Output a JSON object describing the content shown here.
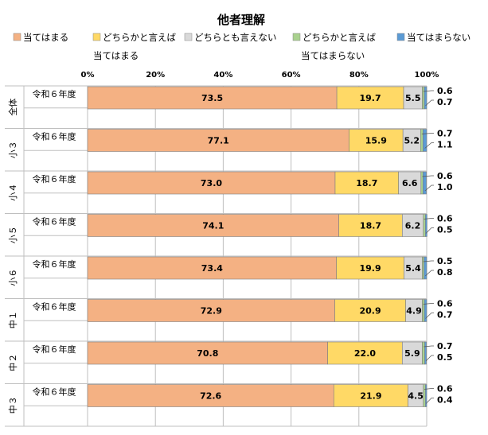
{
  "chart_data": {
    "type": "bar",
    "orientation": "horizontal",
    "stacked": true,
    "title": "他者理解",
    "legend_position": "top",
    "xlabel": "",
    "ylabel": "",
    "xlim": [
      0,
      100
    ],
    "x_ticks": [
      "0%",
      "20%",
      "40%",
      "60%",
      "80%",
      "100%"
    ],
    "grid": true,
    "category_label": "令和６年度",
    "groups": [
      "全体",
      "小３",
      "小４",
      "小５",
      "小６",
      "中１",
      "中２",
      "中３"
    ],
    "series": [
      {
        "name": "当てはまる",
        "color": "#F4B183",
        "values": [
          73.5,
          77.1,
          73.0,
          74.1,
          73.4,
          72.9,
          70.8,
          72.6
        ]
      },
      {
        "name": "どちらかと言えば当てはまる",
        "color": "#FFD966",
        "values": [
          19.7,
          15.9,
          18.7,
          18.7,
          19.9,
          20.9,
          22.0,
          21.9
        ]
      },
      {
        "name": "どちらとも言えない",
        "color": "#D9D9D9",
        "values": [
          5.5,
          5.2,
          6.6,
          6.2,
          5.4,
          4.9,
          5.9,
          4.5
        ]
      },
      {
        "name": "どちらかと言えば当てはまらない",
        "color": "#A9D18E",
        "values": [
          0.6,
          0.7,
          0.6,
          0.6,
          0.5,
          0.6,
          0.7,
          0.6
        ]
      },
      {
        "name": "当てはまらない",
        "color": "#5B9BD5",
        "values": [
          0.7,
          1.1,
          1.0,
          0.5,
          0.8,
          0.7,
          0.5,
          0.4
        ]
      }
    ]
  }
}
